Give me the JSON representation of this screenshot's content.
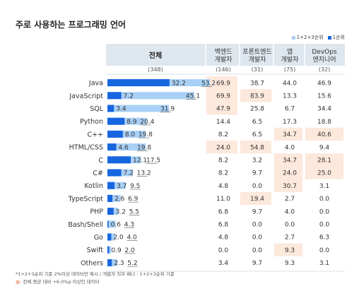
{
  "title": "주로 사용하는 프로그래밍 언어",
  "legend": {
    "items": [
      {
        "label": "1+2+3순위",
        "color": "#a9d0f5"
      },
      {
        "label": "1순위",
        "color": "#1666e0"
      }
    ]
  },
  "colors": {
    "bar_rank1": "#1666e0",
    "bar_rank123": "#a9d0f5",
    "highlight": "#fde8dc",
    "header_bg": "#dee6ee"
  },
  "chart_data": {
    "type": "bar",
    "columns": [
      {
        "key": "total",
        "label": [
          "전체"
        ],
        "count": "(348)"
      },
      {
        "key": "backend",
        "label": [
          "백엔드",
          "개발자"
        ],
        "count": "(146)"
      },
      {
        "key": "frontend",
        "label": [
          "프론트엔드",
          "개발자"
        ],
        "count": "(31)"
      },
      {
        "key": "app",
        "label": [
          "앱",
          "개발자"
        ],
        "count": "(75)"
      },
      {
        "key": "devops",
        "label": [
          "DevOps",
          "엔지니어"
        ],
        "count": "(32)"
      }
    ],
    "categories": [
      "Java",
      "JavaScript",
      "SQL",
      "Python",
      "C++",
      "HTML/CSS",
      "C",
      "C#",
      "Kotlin",
      "TypeScript",
      "PHP",
      "Bash/Shell",
      "Go",
      "Swift",
      "Others"
    ],
    "series": [
      {
        "name": "1순위",
        "values": [
          32.2,
          7.2,
          3.4,
          8.9,
          8.0,
          4.6,
          12.1,
          7.2,
          3.7,
          2.6,
          3.2,
          0.6,
          2.0,
          0.9,
          2.3
        ]
      },
      {
        "name": "1+2+3순위",
        "values": [
          53.2,
          45.1,
          31.9,
          20.4,
          19.8,
          19.8,
          17.5,
          13.2,
          9.5,
          6.9,
          5.5,
          4.3,
          4.0,
          2.0,
          5.2
        ]
      }
    ],
    "table": {
      "backend": [
        "69.9",
        "69.9",
        "47.9",
        "14.4",
        "8.2",
        "24.0",
        "8.2",
        "8.2",
        "4.8",
        "11.0",
        "6.8",
        "6.8",
        "4.8",
        "0.0",
        "3.4"
      ],
      "frontend": [
        "38.7",
        "83.9",
        "25.8",
        "6.5",
        "6.5",
        "54.8",
        "3.2",
        "9.7",
        "0.0",
        "19.4",
        "9.7",
        "0.0",
        "0.0",
        "0.0",
        "9.7"
      ],
      "app": [
        "44.0",
        "13.3",
        "6.7",
        "17.3",
        "34.7",
        "4.0",
        "34.7",
        "24.0",
        "30.7",
        "2.7",
        "4.0",
        "0.0",
        "2.7",
        "9.3",
        "9.3"
      ],
      "devops": [
        "46.9",
        "15.6",
        "34.4",
        "18.8",
        "40.6",
        "9.4",
        "28.1",
        "25.0",
        "3.1",
        "0.0",
        "0.0",
        "0.0",
        "6.3",
        "0.0",
        "3.1"
      ]
    },
    "highlighted": {
      "backend": [
        0,
        1,
        2,
        5
      ],
      "frontend": [
        1,
        5,
        9
      ],
      "app": [
        4,
        6,
        7,
        8,
        13
      ],
      "devops": [
        4,
        6,
        7
      ]
    },
    "xlim": [
      0,
      55
    ]
  },
  "footnotes": [
    {
      "marker": "*",
      "text": "1+2+3순위 기준 2%이상 데이터만 제시 / 개발자 직무 베너 : 1+2+3순위 기준"
    },
    {
      "marker": "■",
      "text": ": 전체 평균 대비 +6.0%p 이상인 데이터"
    }
  ]
}
